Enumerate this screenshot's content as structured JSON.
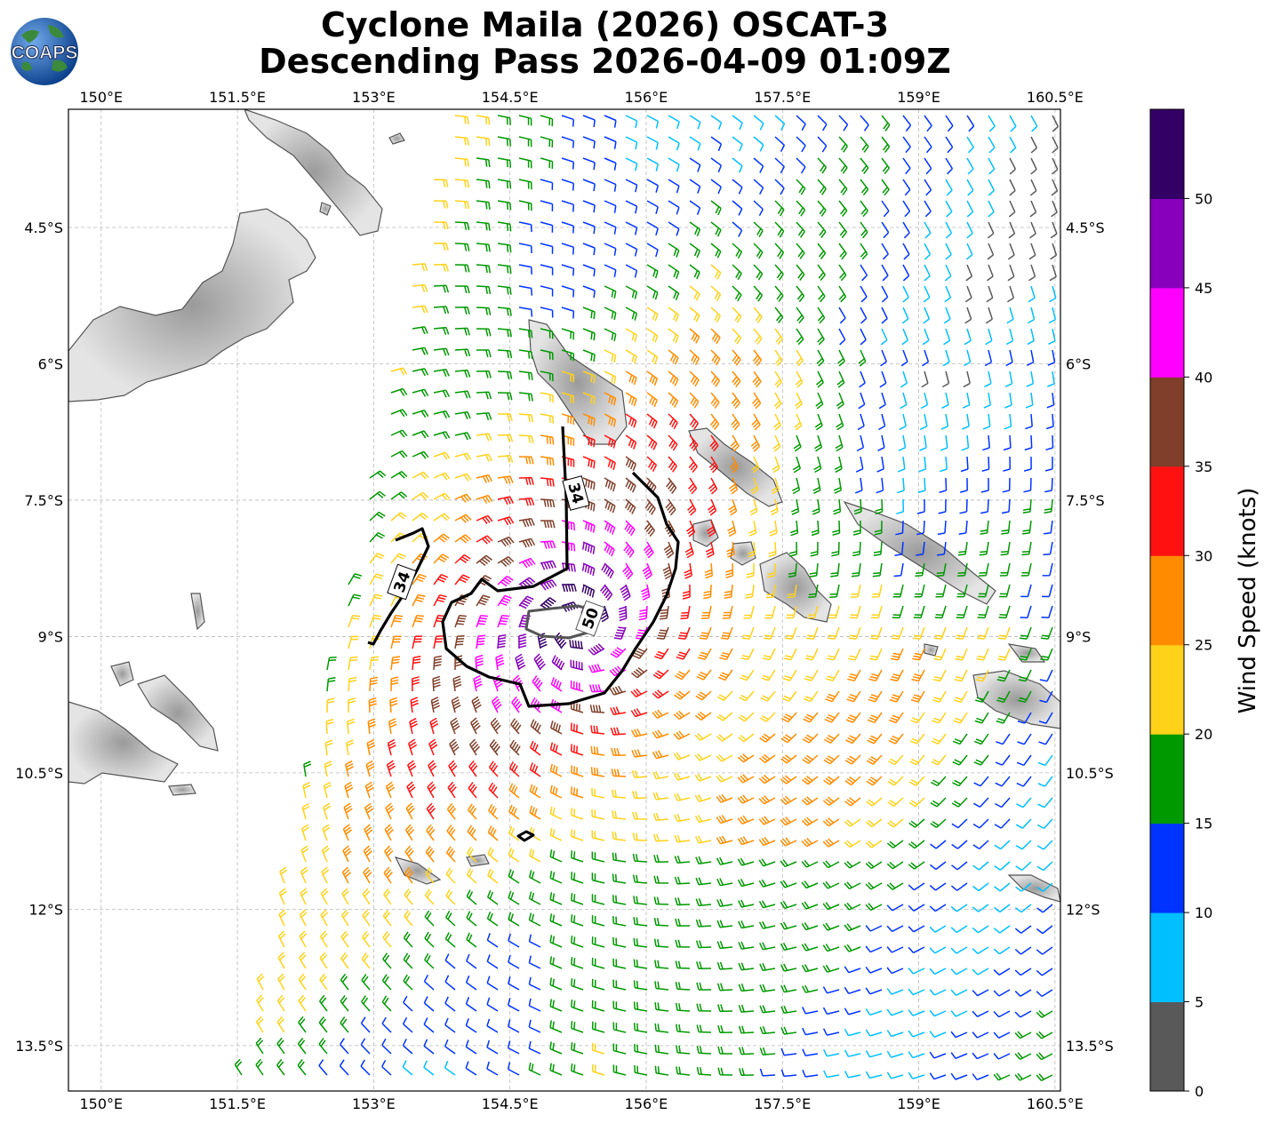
{
  "title": {
    "line1": "Cyclone Maila (2026) OSCAT-3",
    "line2": "Descending Pass 2026-04-09 01:09Z"
  },
  "logo": {
    "text": "COAPS",
    "icon": "globe-logo"
  },
  "map": {
    "lon_range": [
      149.64,
      160.56
    ],
    "lat_range": [
      -14.0,
      -3.2
    ],
    "lon_ticks": [
      "150°E",
      "151.5°E",
      "153°E",
      "154.5°E",
      "156°E",
      "157.5°E",
      "159°E",
      "160.5°E"
    ],
    "lat_ticks": [
      "4.5°S",
      "6°S",
      "7.5°S",
      "9°S",
      "10.5°S",
      "12°S",
      "13.5°S"
    ],
    "grid": true
  },
  "contours": [
    {
      "label": "34"
    },
    {
      "label": "34"
    },
    {
      "label": "50"
    }
  ],
  "colorbar": {
    "label": "Wind Speed (knots)",
    "ticks": [
      "0",
      "5",
      "10",
      "15",
      "20",
      "25",
      "30",
      "35",
      "40",
      "45",
      "50"
    ],
    "bins": [
      {
        "range": [
          0,
          5
        ],
        "color": "#595959"
      },
      {
        "range": [
          5,
          10
        ],
        "color": "#00bfff"
      },
      {
        "range": [
          10,
          15
        ],
        "color": "#0033ff"
      },
      {
        "range": [
          15,
          20
        ],
        "color": "#009900"
      },
      {
        "range": [
          20,
          25
        ],
        "color": "#ffd21a"
      },
      {
        "range": [
          25,
          30
        ],
        "color": "#ff8c00"
      },
      {
        "range": [
          30,
          35
        ],
        "color": "#ff1111"
      },
      {
        "range": [
          35,
          40
        ],
        "color": "#7f3f2a"
      },
      {
        "range": [
          40,
          45
        ],
        "color": "#ff00ff"
      },
      {
        "range": [
          45,
          50
        ],
        "color": "#8800bb"
      },
      {
        "range": [
          50,
          55
        ],
        "color": "#330066"
      }
    ]
  }
}
